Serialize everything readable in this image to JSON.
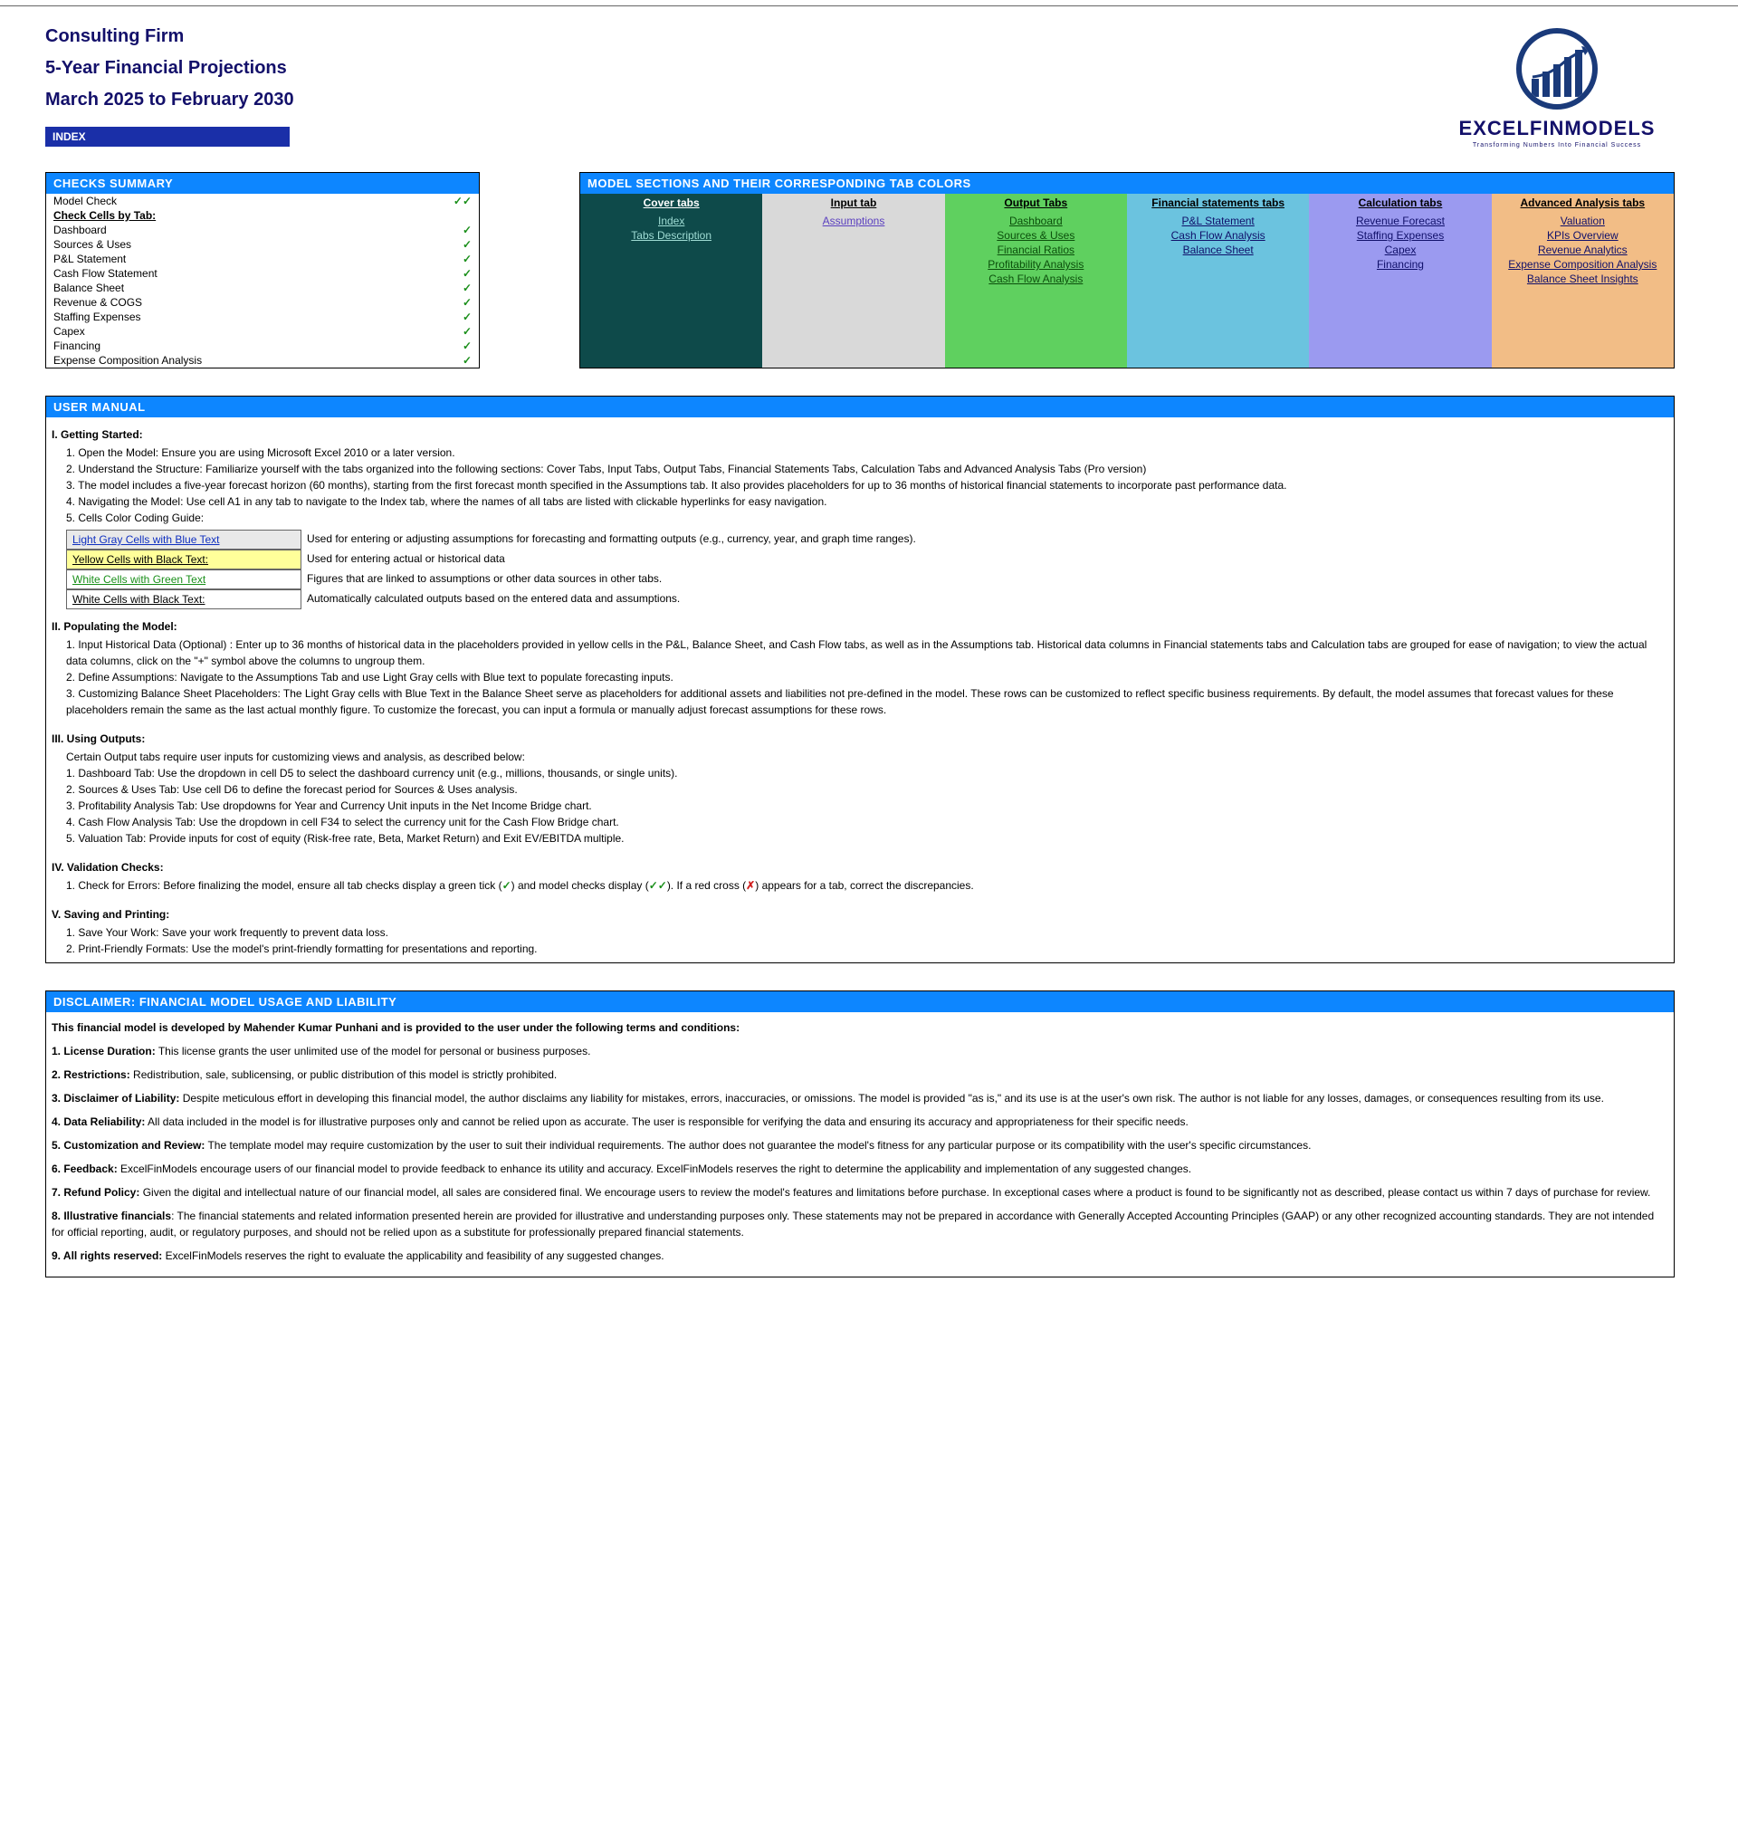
{
  "header": {
    "line1": "Consulting Firm",
    "line2": "5-Year Financial Projections",
    "line3": "March 2025 to February 2030",
    "index_label": "INDEX"
  },
  "logo": {
    "name": "EXCELFINMODELS",
    "tagline": "Transforming Numbers Into Financial Success",
    "bar_heights": [
      20,
      28,
      36,
      44,
      52
    ],
    "ring_color": "#1a3a7a",
    "text_color": "#13106a"
  },
  "checks": {
    "title": "CHECKS  SUMMARY",
    "rows": [
      {
        "label": "Model Check",
        "mark": "✓✓",
        "underline": false
      },
      {
        "label": "Check Cells by Tab:",
        "mark": "",
        "underline": true
      },
      {
        "label": "Dashboard",
        "mark": "✓",
        "underline": false
      },
      {
        "label": "Sources & Uses",
        "mark": "✓",
        "underline": false
      },
      {
        "label": "P&L Statement",
        "mark": "✓",
        "underline": false
      },
      {
        "label": "Cash Flow Statement",
        "mark": "✓",
        "underline": false
      },
      {
        "label": "Balance Sheet",
        "mark": "✓",
        "underline": false
      },
      {
        "label": "Revenue & COGS",
        "mark": "✓",
        "underline": false
      },
      {
        "label": "Staffing Expenses",
        "mark": "✓",
        "underline": false
      },
      {
        "label": "Capex",
        "mark": "✓",
        "underline": false
      },
      {
        "label": "Financing",
        "mark": "✓",
        "underline": false
      },
      {
        "label": "Expense Composition Analysis",
        "mark": "✓",
        "underline": false
      }
    ]
  },
  "sections": {
    "title": "MODEL SECTIONS AND THEIR CORRESPONDING TAB COLORS",
    "columns": [
      {
        "header": "Cover tabs",
        "bg": "#0e4a4a",
        "header_light": true,
        "link_color": "#9fdcd4",
        "links": [
          "Index",
          "Tabs Description"
        ]
      },
      {
        "header": "Input tab",
        "bg": "#d9d9d9",
        "header_light": false,
        "link_color": "#5a3fbf",
        "links": [
          "Assumptions "
        ]
      },
      {
        "header": "Output Tabs",
        "bg": "#5fd05f",
        "header_light": false,
        "link_color": "#0b4f0b",
        "links": [
          "Dashboard",
          "Sources & Uses",
          "Financial Ratios",
          "Profitability Analysis",
          "Cash Flow Analysis"
        ]
      },
      {
        "header": "Financial statements tabs",
        "bg": "#6bc3df",
        "header_light": false,
        "link_color": "#10106a",
        "links": [
          "P&L Statement",
          "Cash Flow Analysis",
          "Balance Sheet"
        ]
      },
      {
        "header": "Calculation tabs",
        "bg": "#9b9af0",
        "header_light": false,
        "link_color": "#10106a",
        "links": [
          "Revenue Forecast",
          "Staffing Expenses",
          "Capex ",
          "Financing"
        ]
      },
      {
        "header": "Advanced Analysis tabs",
        "bg": "#f2bd86",
        "header_light": false,
        "link_color": "#10106a",
        "links": [
          "Valuation",
          "KPIs Overview",
          "Revenue Analytics",
          "Expense Composition Analysis",
          "Balance Sheet Insights"
        ]
      }
    ]
  },
  "manual": {
    "title": "USER MANUAL",
    "s1_head": "I. Getting Started:",
    "s1": [
      "1. Open the Model: Ensure you are using Microsoft Excel 2010 or a later version.",
      "2. Understand the Structure: Familiarize yourself with the tabs organized into the following sections: Cover Tabs, Input Tabs, Output Tabs, Financial Statements Tabs,  Calculation Tabs and Advanced Analysis Tabs (Pro version)",
      "3. The model includes a five-year forecast horizon (60 months), starting from the first forecast month specified in the Assumptions tab. It also provides placeholders for up to 36 months of historical financial statements to incorporate past performance data.",
      "4. Navigating the Model: Use cell A1 in any tab to navigate to the Index tab, where the names of all tabs are listed with clickable hyperlinks for easy navigation.",
      "5. Cells Color Coding Guide:"
    ],
    "color_guide": [
      {
        "label": "Light Gray Cells with Blue Text",
        "label_bg": "#e9e9e9",
        "label_color": "#1030c0",
        "desc": "Used for entering or adjusting assumptions for forecasting and formatting outputs (e.g., currency, year, and graph time ranges)."
      },
      {
        "label": "Yellow Cells with Black Text:",
        "label_bg": "#ffff9a",
        "label_color": "#000000",
        "desc": "Used for entering actual or historical data"
      },
      {
        "label": "White Cells with Green Text",
        "label_bg": "#ffffff",
        "label_color": "#1a8f1a",
        "desc": "Figures that are linked to assumptions or other data sources in other tabs."
      },
      {
        "label": "White Cells with Black Text:",
        "label_bg": "#ffffff",
        "label_color": "#000000",
        "desc": "Automatically calculated outputs based on the entered data and assumptions."
      }
    ],
    "s2_head": "II. Populating the Model:",
    "s2": [
      "1. Input Historical Data (Optional) : Enter up to 36 months of historical data in the placeholders provided in yellow cells in the P&L, Balance Sheet, and Cash Flow tabs, as well as in the Assumptions tab. Historical data columns in Financial statements tabs and Calculation tabs are grouped for ease of navigation; to view the actual data columns, click on the \"+\" symbol above the columns to ungroup them.",
      "2. Define Assumptions: Navigate to the Assumptions Tab and use Light Gray cells with Blue text to populate forecasting inputs.",
      "3. Customizing Balance Sheet Placeholders: The Light Gray cells with Blue Text in the Balance Sheet serve as placeholders for additional assets and liabilities not pre-defined in the model. These rows can be customized to reflect specific business requirements. By default, the model assumes that forecast values for these placeholders remain the same as the last actual monthly figure. To customize the forecast, you can input a formula or manually adjust forecast assumptions for these rows."
    ],
    "s3_head": "III. Using Outputs:",
    "s3_intro": "Certain Output tabs require user inputs for customizing views and analysis, as described below:",
    "s3": [
      "1. Dashboard Tab: Use the dropdown in cell D5 to select the dashboard currency unit (e.g., millions, thousands, or single units).",
      "2. Sources & Uses Tab: Use cell D6 to define the forecast period for Sources & Uses analysis.",
      "3. Profitability Analysis Tab: Use dropdowns for Year and Currency Unit inputs in the Net Income Bridge chart.",
      "4. Cash Flow Analysis Tab: Use the dropdown in cell F34 to select the currency unit for the Cash Flow Bridge chart.",
      "5. Valuation Tab: Provide inputs for cost of equity (Risk-free rate, Beta, Market Return) and Exit EV/EBITDA multiple."
    ],
    "s4_head": "IV. Validation Checks:",
    "s4_pre": "1. Check for Errors:  Before finalizing the model, ensure all tab checks display a green tick (",
    "s4_mid1": ") and model checks display  (",
    "s4_mid2": "). If a red cross (",
    "s4_post": ") appears for a tab, correct the discrepancies.",
    "s4_tick": "✓",
    "s4_dtick": "✓✓",
    "s4_cross": "✗",
    "s5_head": "V. Saving and Printing:",
    "s5": [
      "1. Save Your Work: Save your work frequently to prevent data loss.",
      "2. Print-Friendly Formats: Use the model's print-friendly formatting for presentations and reporting."
    ]
  },
  "disclaimer": {
    "title": "DISCLAIMER: FINANCIAL MODEL USAGE AND LIABILITY",
    "lead": "This financial model  is developed by Mahender Kumar Punhani and is provided to the user under the following terms and conditions:",
    "items": [
      {
        "head": "1. License Duration:",
        "body": " This license grants the user unlimited use of the model for personal or business purposes."
      },
      {
        "head": "2. Restrictions:",
        "body": " Redistribution, sale, sublicensing, or public distribution of this model is strictly prohibited."
      },
      {
        "head": "3. Disclaimer of Liability:",
        "body": " Despite meticulous effort in developing this financial model, the author disclaims any liability for mistakes, errors, inaccuracies, or omissions. The model is provided \"as is,\" and its use is at the user's own risk. The author is not liable for  any losses, damages, or consequences resulting from its use."
      },
      {
        "head": "4. Data Reliability:",
        "body": " All data included in the model is for illustrative purposes only and cannot be relied upon as accurate. The user is  responsible for verifying the data and ensuring its accuracy and appropriateness for their specific needs."
      },
      {
        "head": "5. Customization and Review:",
        "body": " The template model may require customization by the user to suit their individual requirements. The author does not guarantee the model's fitness for any  particular purpose or its compatibility with the user's specific circumstances."
      },
      {
        "head": "6. Feedback:",
        "body": " ExcelFinModels encourage users of our financial model to provide feedback to enhance its utility and accuracy. ExcelFinModels reserves the right to determine the applicability and implementation of any suggested changes."
      },
      {
        "head": "7. Refund Policy:",
        "body": " Given the digital and intellectual nature of our financial model, all sales are considered final. We encourage users to review the model's features and limitations before purchase. In exceptional cases where a product is found to be  significantly not as described, please contact us within 7 days of purchase for review."
      },
      {
        "head": "8. Illustrative financials",
        "body": ": The financial statements and related information presented herein are provided for illustrative and understanding purposes only. These statements may not be prepared in accordance with Generally Accepted Accounting Principles (GAAP)  or any other  recognized accounting standards. They are not intended for official reporting, audit, or regulatory purposes, and should not be relied upon as a substitute for professionally prepared financial statements."
      },
      {
        "head": "9. All rights reserved:",
        "body": " ExcelFinModels reserves the right to evaluate the applicability and feasibility of any suggested changes."
      }
    ]
  }
}
